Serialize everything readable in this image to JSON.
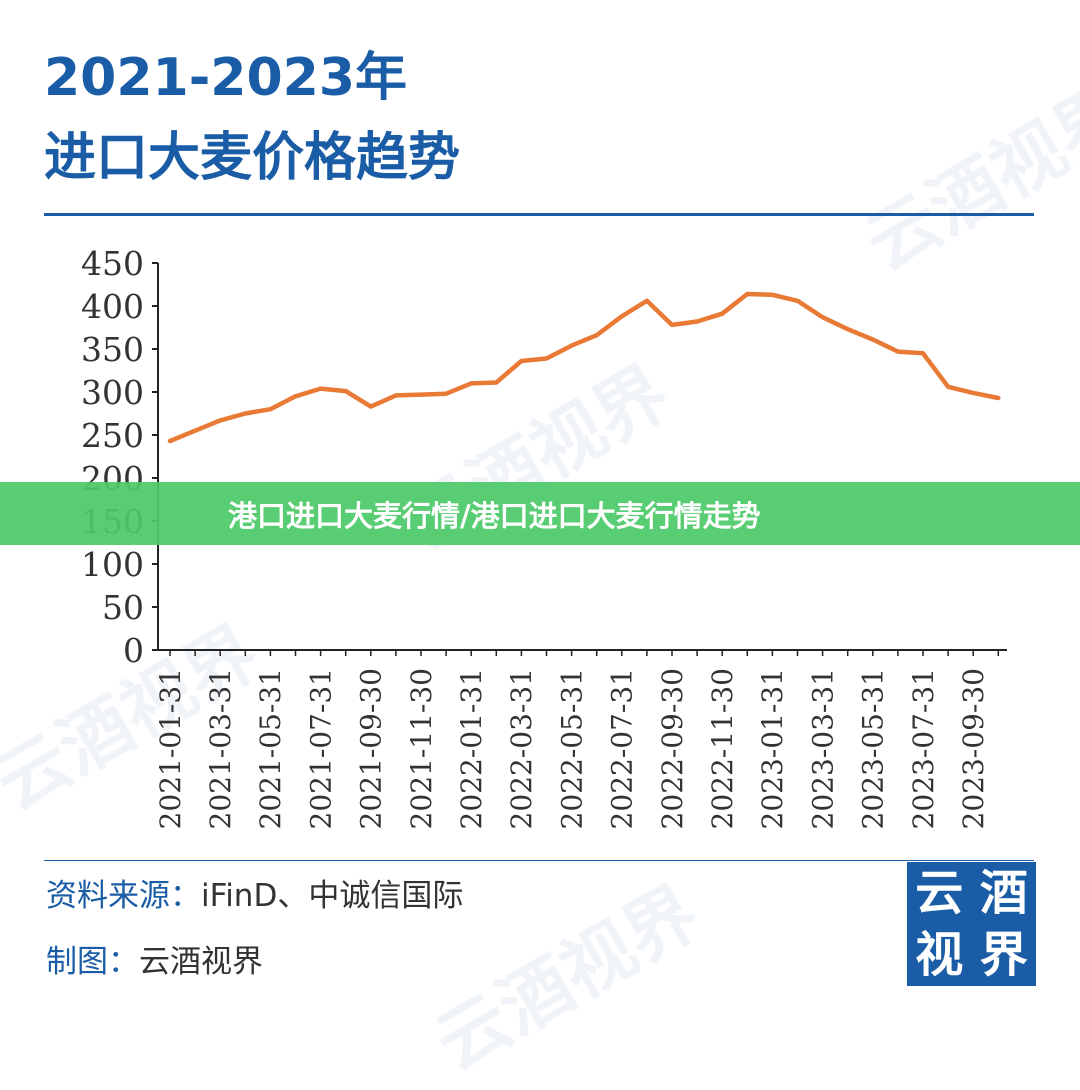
{
  "header": {
    "title_line1": "2021-2023年",
    "title_line2": "进口大麦价格趋势"
  },
  "banner": {
    "text": "港口进口大麦行情/港口进口大麦行情走势"
  },
  "footer": {
    "source_label": "资料来源：",
    "source_value": "iFinD、中诚信国际",
    "maker_label": "制图：",
    "maker_value": "云酒视界"
  },
  "logo": {
    "chars": [
      "云",
      "酒",
      "视",
      "界"
    ]
  },
  "watermark": {
    "text": "云酒视界"
  },
  "colors": {
    "brand": "#1a5da6",
    "line": "#e97a35",
    "banner": "#4cc968"
  },
  "chart_data": {
    "type": "line",
    "title": "",
    "xlabel": "",
    "ylabel": "",
    "ylim": [
      0,
      450
    ],
    "yticks": [
      0,
      50,
      100,
      150,
      200,
      250,
      300,
      350,
      400,
      450
    ],
    "xtick_labels": [
      "2021-01-31",
      "2021-03-31",
      "2021-05-31",
      "2021-07-31",
      "2021-09-30",
      "2021-11-30",
      "2022-01-31",
      "2022-03-31",
      "2022-05-31",
      "2022-07-31",
      "2022-09-30",
      "2022-11-30",
      "2023-01-31",
      "2023-03-31",
      "2023-05-31",
      "2023-07-31",
      "2023-09-30"
    ],
    "x": [
      "2021-01",
      "2021-02",
      "2021-03",
      "2021-04",
      "2021-05",
      "2021-06",
      "2021-07",
      "2021-08",
      "2021-09",
      "2021-10",
      "2021-11",
      "2021-12",
      "2022-01",
      "2022-02",
      "2022-03",
      "2022-04",
      "2022-05",
      "2022-06",
      "2022-07",
      "2022-08",
      "2022-09",
      "2022-10",
      "2022-11",
      "2022-12",
      "2023-01",
      "2023-02",
      "2023-03",
      "2023-04",
      "2023-05",
      "2023-06",
      "2023-07",
      "2023-08",
      "2023-09",
      "2023-10"
    ],
    "series": [
      {
        "values": [
          243,
          255,
          267,
          275,
          280,
          295,
          304,
          301,
          283,
          296,
          297,
          298,
          310,
          311,
          336,
          339,
          354,
          366,
          388,
          406,
          378,
          382,
          391,
          414,
          413,
          406,
          387,
          373,
          361,
          347,
          345,
          306,
          299,
          293
        ]
      }
    ],
    "grid": false,
    "legend": "none"
  }
}
